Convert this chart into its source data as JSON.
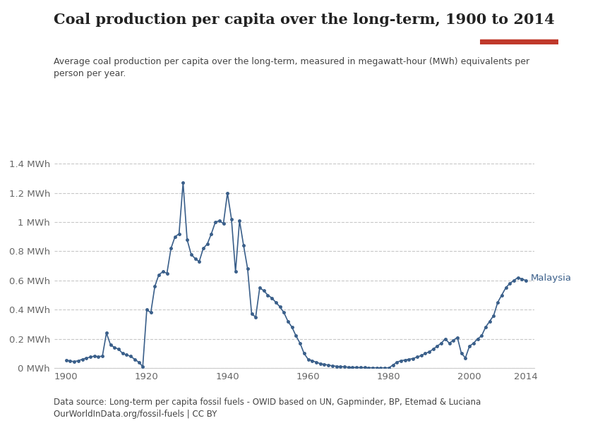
{
  "title": "Coal production per capita over the long-term, 1900 to 2014",
  "subtitle": "Average coal production per capita over the long-term, measured in megawatt-hour (MWh) equivalents per\nperson per year.",
  "datasource": "Data source: Long-term per capita fossil fuels - OWID based on UN, Gapminder, BP, Etemad & Luciana\nOurWorldInData.org/fossil-fuels | CC BY",
  "line_color": "#3a5f8a",
  "background_color": "#ffffff",
  "grid_color": "#c8c8c8",
  "label": "Malaysia",
  "label_color": "#3a5f8a",
  "years": [
    1900,
    1901,
    1902,
    1903,
    1904,
    1905,
    1906,
    1907,
    1908,
    1909,
    1910,
    1911,
    1912,
    1913,
    1914,
    1915,
    1916,
    1917,
    1918,
    1919,
    1920,
    1921,
    1922,
    1923,
    1924,
    1925,
    1926,
    1927,
    1928,
    1929,
    1930,
    1931,
    1932,
    1933,
    1934,
    1935,
    1936,
    1937,
    1938,
    1939,
    1940,
    1941,
    1942,
    1943,
    1944,
    1945,
    1946,
    1947,
    1948,
    1949,
    1950,
    1951,
    1952,
    1953,
    1954,
    1955,
    1956,
    1957,
    1958,
    1959,
    1960,
    1961,
    1962,
    1963,
    1964,
    1965,
    1966,
    1967,
    1968,
    1969,
    1970,
    1971,
    1972,
    1973,
    1974,
    1975,
    1976,
    1977,
    1978,
    1979,
    1980,
    1981,
    1982,
    1983,
    1984,
    1985,
    1986,
    1987,
    1988,
    1989,
    1990,
    1991,
    1992,
    1993,
    1994,
    1995,
    1996,
    1997,
    1998,
    1999,
    2000,
    2001,
    2002,
    2003,
    2004,
    2005,
    2006,
    2007,
    2008,
    2009,
    2010,
    2011,
    2012,
    2013,
    2014
  ],
  "values": [
    0.055,
    0.048,
    0.044,
    0.05,
    0.06,
    0.068,
    0.075,
    0.082,
    0.078,
    0.082,
    0.24,
    0.16,
    0.14,
    0.13,
    0.1,
    0.09,
    0.08,
    0.06,
    0.04,
    0.01,
    0.4,
    0.38,
    0.56,
    0.64,
    0.66,
    0.65,
    0.82,
    0.9,
    0.92,
    1.27,
    0.88,
    0.78,
    0.75,
    0.73,
    0.82,
    0.85,
    0.92,
    1.0,
    1.01,
    0.99,
    1.2,
    1.02,
    0.66,
    1.01,
    0.84,
    0.68,
    0.37,
    0.35,
    0.55,
    0.53,
    0.5,
    0.48,
    0.45,
    0.42,
    0.38,
    0.32,
    0.28,
    0.22,
    0.17,
    0.1,
    0.06,
    0.05,
    0.04,
    0.03,
    0.025,
    0.02,
    0.015,
    0.012,
    0.01,
    0.008,
    0.006,
    0.005,
    0.004,
    0.003,
    0.003,
    0.002,
    0.002,
    0.001,
    0.001,
    0.001,
    0.001,
    0.02,
    0.04,
    0.05,
    0.055,
    0.06,
    0.065,
    0.075,
    0.085,
    0.1,
    0.11,
    0.13,
    0.15,
    0.17,
    0.2,
    0.17,
    0.19,
    0.21,
    0.1,
    0.07,
    0.15,
    0.17,
    0.2,
    0.22,
    0.28,
    0.32,
    0.36,
    0.45,
    0.5,
    0.55,
    0.58,
    0.6,
    0.62,
    0.61,
    0.6
  ],
  "ylim": [
    0,
    1.45
  ],
  "xlim": [
    1897,
    2016
  ],
  "yticks": [
    0,
    0.2,
    0.4,
    0.6,
    0.8,
    1.0,
    1.2,
    1.4
  ],
  "ytick_labels": [
    "0 MWh",
    "0.2 MWh",
    "0.4 MWh",
    "0.6 MWh",
    "0.8 MWh",
    "1 MWh",
    "1.2 MWh",
    "1.4 MWh"
  ],
  "xticks": [
    1900,
    1920,
    1940,
    1960,
    1980,
    2000,
    2014
  ],
  "logo_bg": "#1a3a5c",
  "logo_red": "#c0392b",
  "title_color": "#222222",
  "subtitle_color": "#444444",
  "source_color": "#444444"
}
